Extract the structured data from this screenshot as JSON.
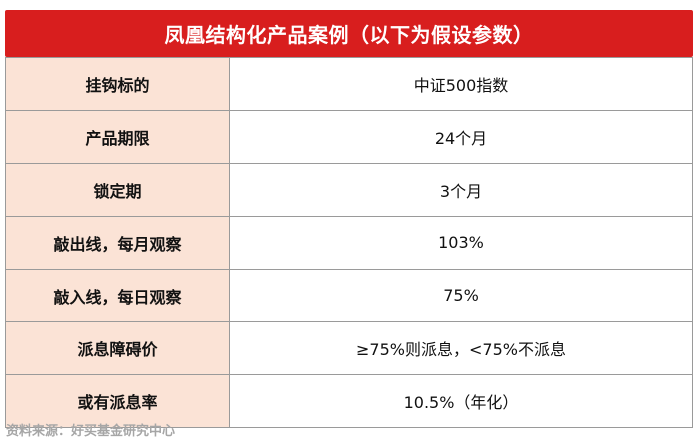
{
  "title": "凤凰结构化产品案例（以下为假设参数）",
  "rows": [
    {
      "label": "挂钩标的",
      "value": "中证500指数"
    },
    {
      "label": "产品期限",
      "value": "24个月"
    },
    {
      "label": "锁定期",
      "value": "3个月"
    },
    {
      "label": "敲出线，每月观察",
      "value": "103%"
    },
    {
      "label": "敲入线，每日观察",
      "value": "75%"
    },
    {
      "label": "派息障碍价",
      "value": "≥75%则派息，<75%不派息"
    },
    {
      "label": "或有派息率",
      "value": "10.5%（年化）"
    }
  ],
  "source": "资料来源：好买基金研究中心",
  "colors": {
    "title_bg": "#d81e1e",
    "label_bg": "#fbe3d6",
    "border": "#9a9a9a",
    "source_text": "#a6a6a6"
  }
}
